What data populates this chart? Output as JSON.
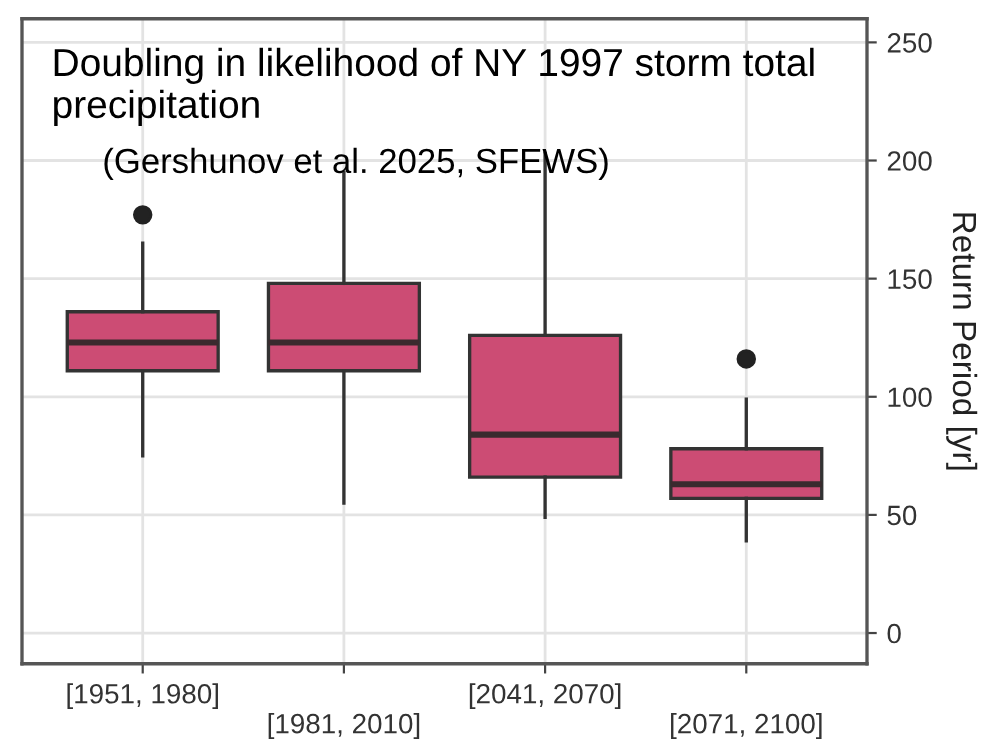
{
  "chart_data": {
    "type": "box",
    "title": "Doubling in likelihood of NY 1997 storm total precipitation",
    "subtitle": "(Gershunov et al. 2025, SFEWS)",
    "ylabel": "Return Period [yr]",
    "categories": [
      "[1951, 1980]",
      "[1981, 2010]",
      "[2041, 2070]",
      "[2071, 2100]"
    ],
    "boxes": [
      {
        "low": 75,
        "q1": 111,
        "median": 123,
        "q3": 136,
        "high": 165,
        "outliers": [
          177
        ]
      },
      {
        "low": 55,
        "q1": 111,
        "median": 123,
        "q3": 148,
        "high": 195
      },
      {
        "low": 49,
        "q1": 66,
        "median": 84,
        "q3": 126,
        "high": 203
      },
      {
        "low": 39,
        "q1": 57,
        "median": 63,
        "q3": 78,
        "high": 99,
        "outliers": [
          116
        ]
      }
    ],
    "color": "#cc4c74",
    "ylim": [
      -13,
      260
    ],
    "yticks": [
      0,
      50,
      100,
      150,
      200,
      250
    ],
    "grid": true
  }
}
